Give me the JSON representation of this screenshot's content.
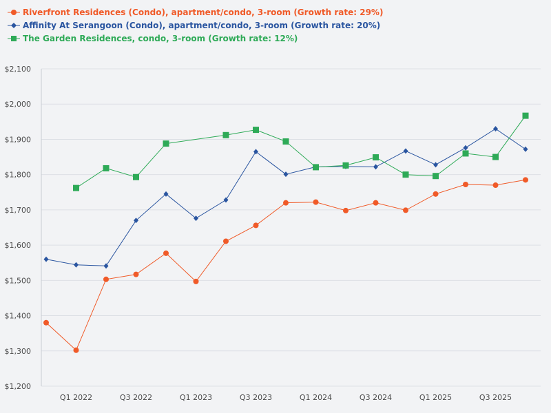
{
  "chart_data": {
    "type": "line",
    "title": "",
    "xlabel": "",
    "ylabel": "",
    "ylim": [
      1200,
      2100
    ],
    "yticks": [
      "$1,200",
      "$1,300",
      "$1,400",
      "$1,500",
      "$1,600",
      "$1,700",
      "$1,800",
      "$1,900",
      "$2,000",
      "$2,100"
    ],
    "ytick_values": [
      1200,
      1300,
      1400,
      1500,
      1600,
      1700,
      1800,
      1900,
      2000,
      2100
    ],
    "x": [
      "Q4 2021",
      "Q1 2022",
      "Q2 2022",
      "Q3 2022",
      "Q4 2022",
      "Q1 2023",
      "Q2 2023",
      "Q3 2023",
      "Q4 2023",
      "Q1 2024",
      "Q2 2024",
      "Q3 2024",
      "Q4 2024",
      "Q1 2025",
      "Q2 2025",
      "Q3 2025",
      "Q4 2025"
    ],
    "xtick_labels": [
      "Q1 2022",
      "Q3 2022",
      "Q1 2023",
      "Q3 2023",
      "Q1 2024",
      "Q3 2024",
      "Q1 2025",
      "Q3 2025"
    ],
    "series": [
      {
        "name": "Riverfront Residences (Condo), apartment/condo, 3-room (Growth rate: 29%)",
        "color": "#f05a28",
        "marker": "circle",
        "values": [
          1380,
          1302,
          1503,
          1517,
          1577,
          1497,
          1611,
          1656,
          1720,
          1722,
          1698,
          1720,
          1699,
          1745,
          1772,
          1770,
          1785
        ]
      },
      {
        "name": "Affinity At Serangoon (Condo), apartment/condo, 3-room (Growth rate: 20%)",
        "color": "#2a55a0",
        "marker": "diamond",
        "values": [
          1560,
          1544,
          1541,
          1670,
          1745,
          1676,
          1728,
          1865,
          1801,
          1822,
          1823,
          1822,
          1867,
          1828,
          1876,
          1930,
          1872
        ]
      },
      {
        "name": "The Garden Residences, condo, 3-room (Growth rate: 12%)",
        "color": "#2eaa57",
        "marker": "square",
        "values": [
          null,
          1762,
          1818,
          1793,
          1888,
          null,
          1912,
          1927,
          1894,
          1821,
          1826,
          1849,
          1800,
          1796,
          1860,
          1850,
          1967
        ]
      }
    ]
  }
}
